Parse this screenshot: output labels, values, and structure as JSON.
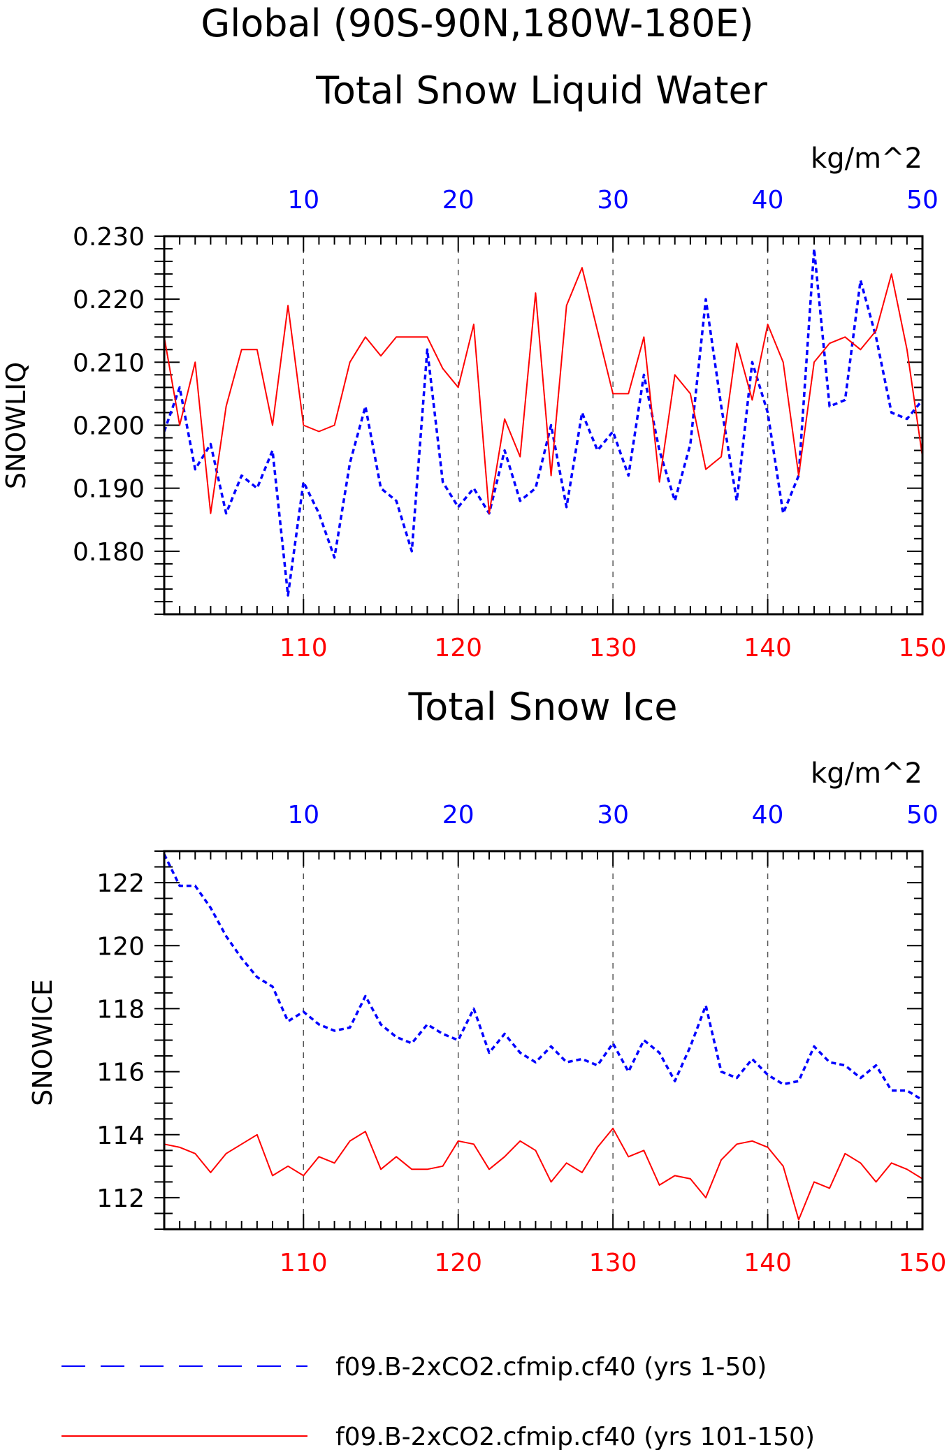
{
  "figure": {
    "title_line1": "Global (90S-90N,180W-180E)",
    "colors": {
      "blue": "#0000ff",
      "red": "#ff0000",
      "axis": "#000000",
      "grid": "#555555"
    }
  },
  "legend": [
    {
      "label": "f09.B-2xCO2.cfmip.cf40 (yrs 1-50)",
      "color": "#0000ff",
      "style": "dashed"
    },
    {
      "label": "f09.B-2xCO2.cfmip.cf40 (yrs 101-150)",
      "color": "#ff0000",
      "style": "solid"
    }
  ],
  "chart_data": [
    {
      "type": "line",
      "title": "Total Snow Liquid Water",
      "units": "kg/m^2",
      "ylabel": "SNOWLIQ",
      "ylim": [
        0.17,
        0.23
      ],
      "yticks": [
        "0.180",
        "0.190",
        "0.200",
        "0.210",
        "0.220",
        "0.230"
      ],
      "y_minor_step": 0.002,
      "grid_x": "dashed vertical at major x ticks",
      "top_axis": {
        "color": "#0000ff",
        "xlim": [
          1,
          50
        ],
        "ticks": [
          10,
          20,
          30,
          40,
          50
        ]
      },
      "bottom_axis": {
        "color": "#ff0000",
        "xlim": [
          101,
          150
        ],
        "ticks": [
          110,
          120,
          130,
          140,
          150
        ]
      },
      "series": [
        {
          "name": "f09.B-2xCO2.cfmip.cf40 (yrs 1-50)",
          "axis": "top",
          "color": "#0000ff",
          "style": "dashed",
          "x": [
            1,
            2,
            3,
            4,
            5,
            6,
            7,
            8,
            9,
            10,
            11,
            12,
            13,
            14,
            15,
            16,
            17,
            18,
            19,
            20,
            21,
            22,
            23,
            24,
            25,
            26,
            27,
            28,
            29,
            30,
            31,
            32,
            33,
            34,
            35,
            36,
            37,
            38,
            39,
            40,
            41,
            42,
            43,
            44,
            45,
            46,
            47,
            48,
            49,
            50
          ],
          "values": [
            0.199,
            0.206,
            0.193,
            0.197,
            0.186,
            0.192,
            0.19,
            0.196,
            0.173,
            0.191,
            0.186,
            0.179,
            0.194,
            0.203,
            0.19,
            0.188,
            0.18,
            0.212,
            0.191,
            0.187,
            0.19,
            0.186,
            0.196,
            0.188,
            0.19,
            0.2,
            0.187,
            0.202,
            0.196,
            0.199,
            0.192,
            0.208,
            0.196,
            0.188,
            0.197,
            0.22,
            0.203,
            0.188,
            0.21,
            0.202,
            0.186,
            0.192,
            0.228,
            0.203,
            0.204,
            0.223,
            0.214,
            0.202,
            0.201,
            0.204
          ]
        },
        {
          "name": "f09.B-2xCO2.cfmip.cf40 (yrs 101-150)",
          "axis": "bottom",
          "color": "#ff0000",
          "style": "solid",
          "x": [
            101,
            102,
            103,
            104,
            105,
            106,
            107,
            108,
            109,
            110,
            111,
            112,
            113,
            114,
            115,
            116,
            117,
            118,
            119,
            120,
            121,
            122,
            123,
            124,
            125,
            126,
            127,
            128,
            129,
            130,
            131,
            132,
            133,
            134,
            135,
            136,
            137,
            138,
            139,
            140,
            141,
            142,
            143,
            144,
            145,
            146,
            147,
            148,
            149,
            150
          ],
          "values": [
            0.214,
            0.2,
            0.21,
            0.186,
            0.203,
            0.212,
            0.212,
            0.2,
            0.219,
            0.2,
            0.199,
            0.2,
            0.21,
            0.214,
            0.211,
            0.214,
            0.214,
            0.214,
            0.209,
            0.206,
            0.216,
            0.186,
            0.201,
            0.195,
            0.221,
            0.192,
            0.219,
            0.225,
            0.215,
            0.205,
            0.205,
            0.214,
            0.191,
            0.208,
            0.205,
            0.193,
            0.195,
            0.213,
            0.204,
            0.216,
            0.21,
            0.192,
            0.21,
            0.213,
            0.214,
            0.212,
            0.215,
            0.224,
            0.212,
            0.195
          ]
        }
      ]
    },
    {
      "type": "line",
      "title": "Total Snow Ice",
      "units": "kg/m^2",
      "ylabel": "SNOWICE",
      "ylim": [
        111,
        123
      ],
      "yticks": [
        "112",
        "114",
        "116",
        "118",
        "120",
        "122"
      ],
      "y_minor_step": 0.5,
      "grid_x": "dashed vertical at major x ticks",
      "top_axis": {
        "color": "#0000ff",
        "xlim": [
          1,
          50
        ],
        "ticks": [
          10,
          20,
          30,
          40,
          50
        ]
      },
      "bottom_axis": {
        "color": "#ff0000",
        "xlim": [
          101,
          150
        ],
        "ticks": [
          110,
          120,
          130,
          140,
          150
        ]
      },
      "series": [
        {
          "name": "f09.B-2xCO2.cfmip.cf40 (yrs 1-50)",
          "axis": "top",
          "color": "#0000ff",
          "style": "dashed",
          "x": [
            1,
            2,
            3,
            4,
            5,
            6,
            7,
            8,
            9,
            10,
            11,
            12,
            13,
            14,
            15,
            16,
            17,
            18,
            19,
            20,
            21,
            22,
            23,
            24,
            25,
            26,
            27,
            28,
            29,
            30,
            31,
            32,
            33,
            34,
            35,
            36,
            37,
            38,
            39,
            40,
            41,
            42,
            43,
            44,
            45,
            46,
            47,
            48,
            49,
            50
          ],
          "values": [
            122.9,
            121.9,
            121.9,
            121.2,
            120.3,
            119.6,
            119.0,
            118.7,
            117.6,
            117.9,
            117.5,
            117.3,
            117.4,
            118.4,
            117.5,
            117.1,
            116.9,
            117.5,
            117.2,
            117.0,
            118.0,
            116.6,
            117.2,
            116.6,
            116.3,
            116.8,
            116.3,
            116.4,
            116.2,
            116.9,
            116.0,
            117.0,
            116.6,
            115.7,
            116.8,
            118.1,
            116.0,
            115.8,
            116.4,
            115.9,
            115.6,
            115.7,
            116.8,
            116.3,
            116.2,
            115.8,
            116.2,
            115.4,
            115.4,
            115.1
          ]
        },
        {
          "name": "f09.B-2xCO2.cfmip.cf40 (yrs 101-150)",
          "axis": "bottom",
          "color": "#ff0000",
          "style": "solid",
          "x": [
            101,
            102,
            103,
            104,
            105,
            106,
            107,
            108,
            109,
            110,
            111,
            112,
            113,
            114,
            115,
            116,
            117,
            118,
            119,
            120,
            121,
            122,
            123,
            124,
            125,
            126,
            127,
            128,
            129,
            130,
            131,
            132,
            133,
            134,
            135,
            136,
            137,
            138,
            139,
            140,
            141,
            142,
            143,
            144,
            145,
            146,
            147,
            148,
            149,
            150
          ],
          "values": [
            113.7,
            113.6,
            113.4,
            112.8,
            113.4,
            113.7,
            114.0,
            112.7,
            113.0,
            112.7,
            113.3,
            113.1,
            113.8,
            114.1,
            112.9,
            113.3,
            112.9,
            112.9,
            113.0,
            113.8,
            113.7,
            112.9,
            113.3,
            113.8,
            113.5,
            112.5,
            113.1,
            112.8,
            113.6,
            114.2,
            113.3,
            113.5,
            112.4,
            112.7,
            112.6,
            112.0,
            113.2,
            113.7,
            113.8,
            113.6,
            113.0,
            111.3,
            112.5,
            112.3,
            113.4,
            113.1,
            112.5,
            113.1,
            112.9,
            112.6
          ]
        }
      ]
    }
  ]
}
